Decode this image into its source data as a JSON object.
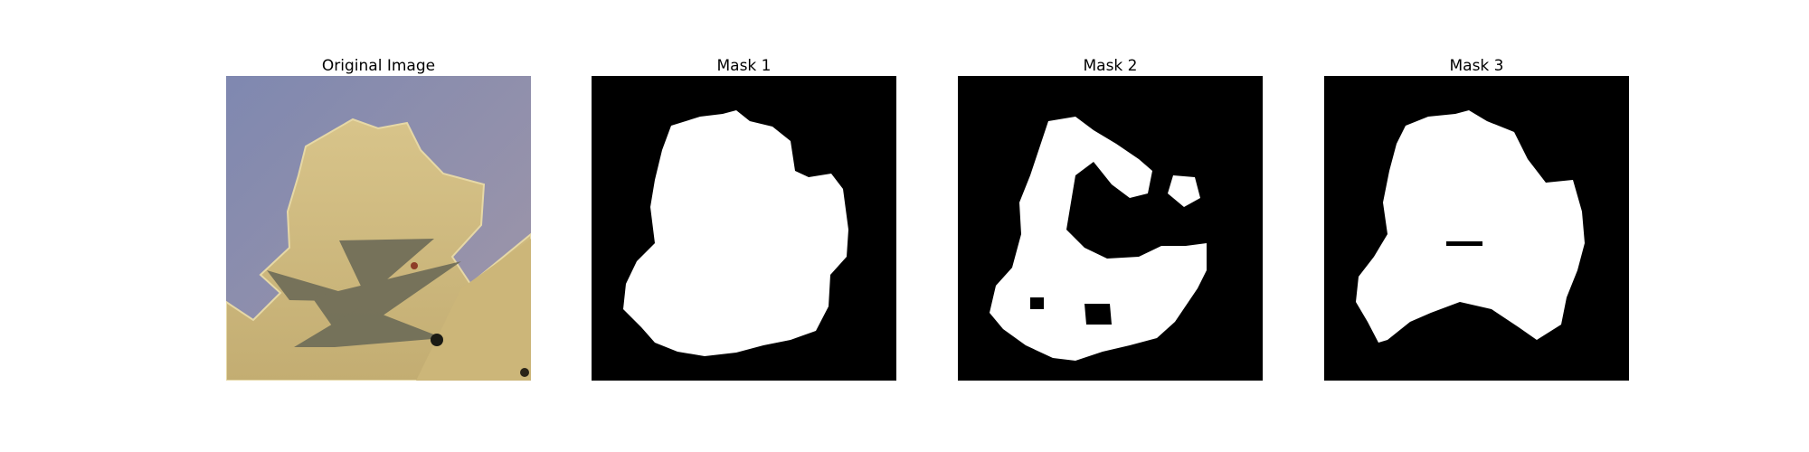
{
  "figure": {
    "panels": [
      {
        "title": "Original Image",
        "kind": "photo",
        "content": "leaf-with-overlay"
      },
      {
        "title": "Mask 1",
        "kind": "mask",
        "mask_color": "#ffffff",
        "background": "#000000"
      },
      {
        "title": "Mask 2",
        "kind": "mask",
        "mask_color": "#ffffff",
        "background": "#000000"
      },
      {
        "title": "Mask 3",
        "kind": "mask",
        "mask_color": "#ffffff",
        "background": "#000000"
      }
    ]
  },
  "colors": {
    "photo_background": "#8e8fa4",
    "leaf": "#c8b57a",
    "overlay_shape": "#6f6d58",
    "mask_on": "#ffffff",
    "mask_off": "#000000"
  }
}
